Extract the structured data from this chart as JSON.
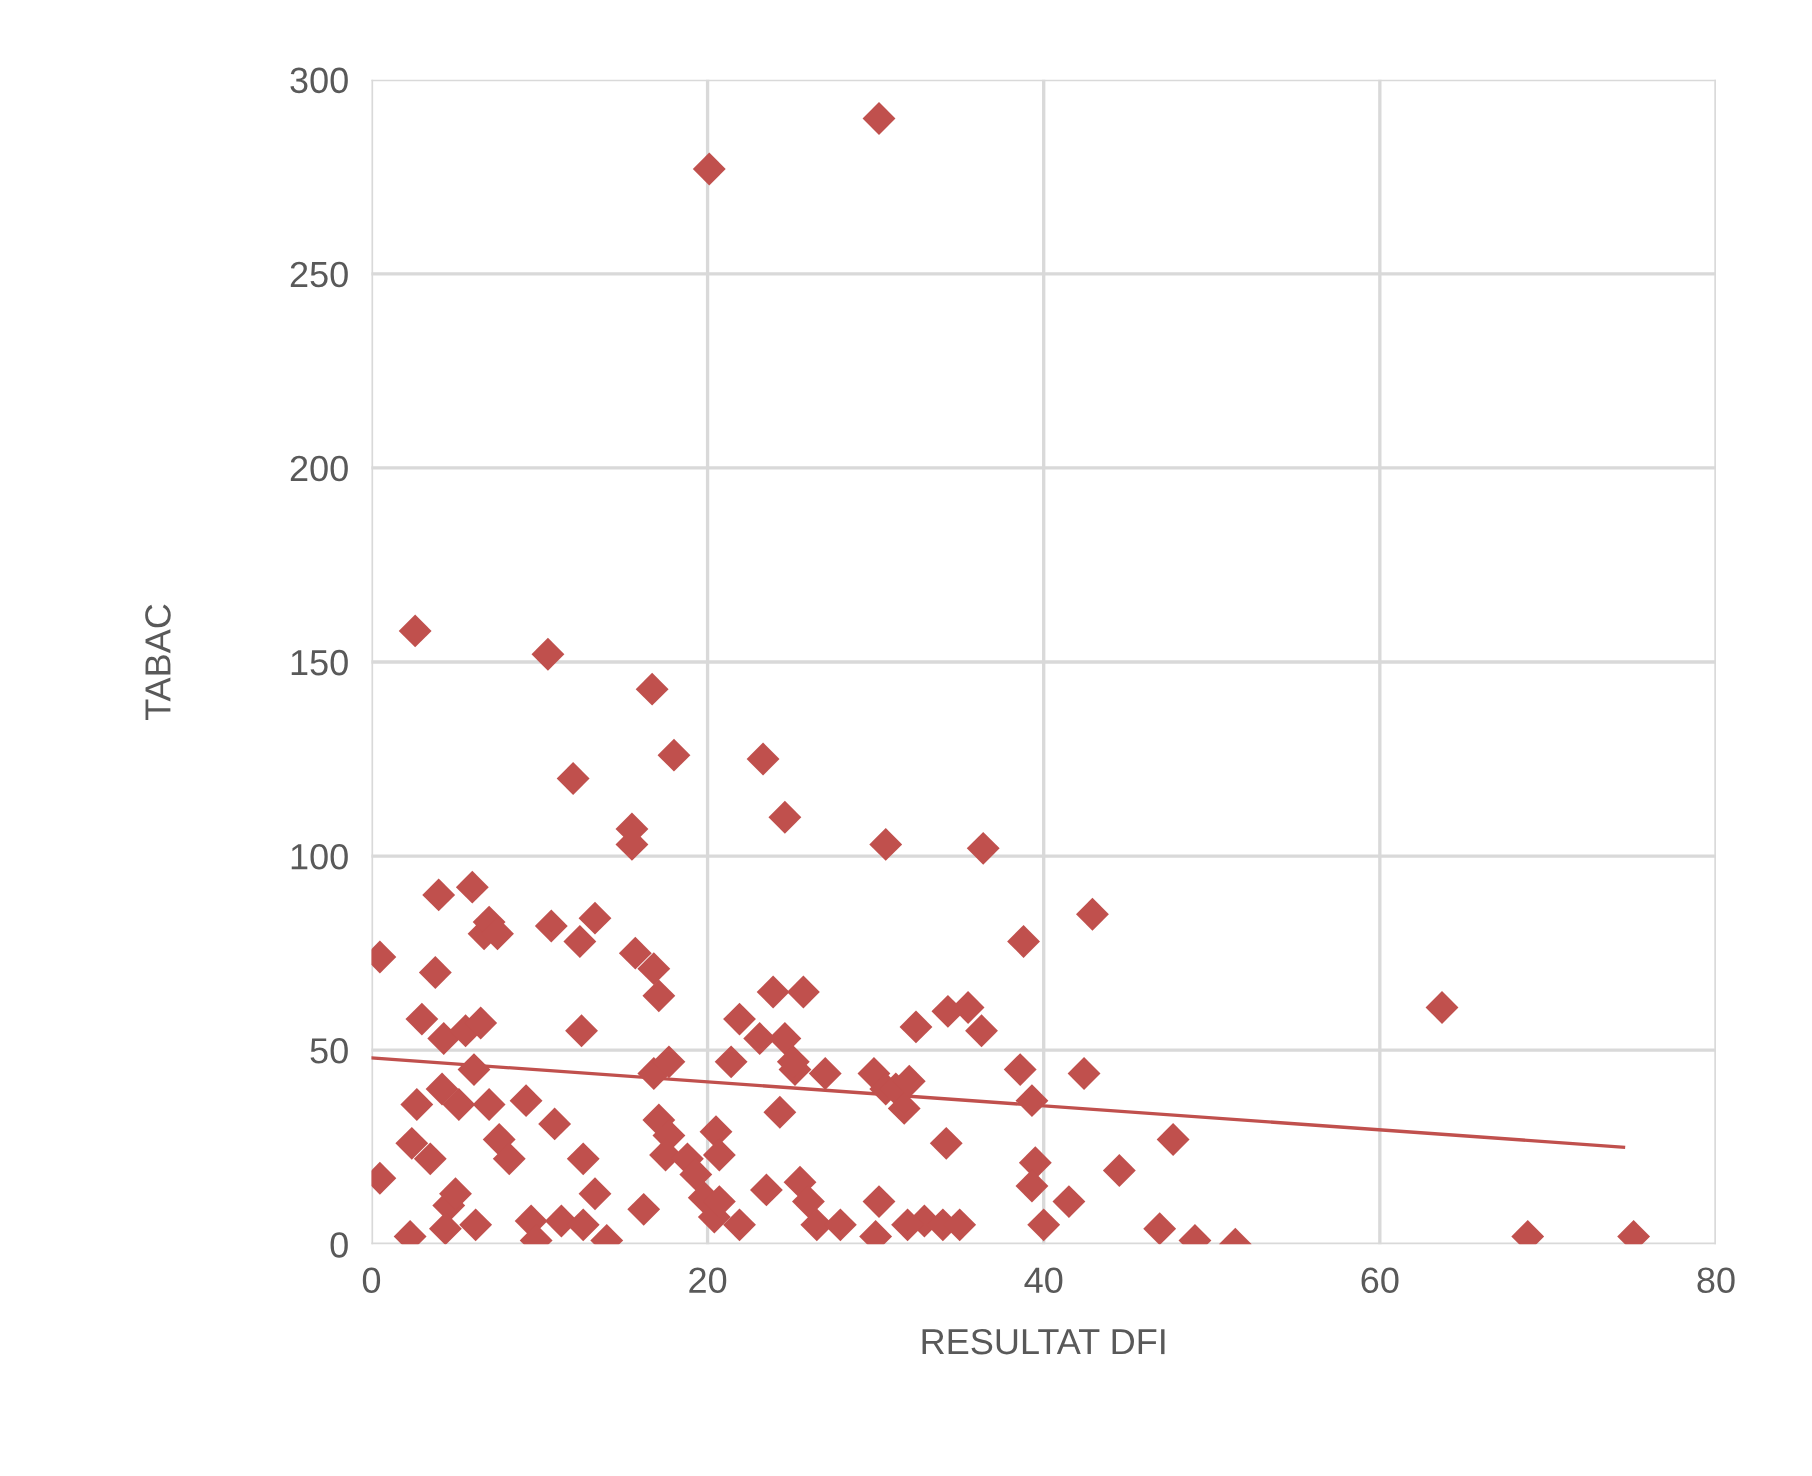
{
  "chart_data": {
    "type": "scatter",
    "xlabel": "RESULTAT DFI",
    "ylabel": "TABAC",
    "xlim": [
      0,
      80
    ],
    "xticks": [
      0,
      20,
      40,
      60,
      80
    ],
    "ylim": [
      0,
      300
    ],
    "yticks": [
      0,
      50,
      100,
      150,
      200,
      250,
      300
    ],
    "grid": true,
    "series": [
      {
        "marker": "diamond",
        "color": "#c0504d",
        "x": [
          0.5,
          0.5,
          2.6,
          2.3,
          2.4,
          2.7,
          3,
          3.8,
          4,
          4.3,
          3.5,
          4.2,
          4.6,
          4.4,
          5,
          5.2,
          6,
          5.6,
          6.1,
          6.5,
          6.7,
          7,
          7.5,
          7,
          6.2,
          7.6,
          8.2,
          9.2,
          9.5,
          9.8,
          10.5,
          10.7,
          10.9,
          11.3,
          12,
          12.4,
          12.5,
          12.6,
          13.3,
          13.3,
          14,
          12.6,
          15.5,
          15.5,
          15.7,
          16.2,
          16.7,
          16.8,
          17.1,
          16.8,
          17.7,
          17.1,
          17.7,
          17.5,
          18,
          18.8,
          19.3,
          19.8,
          20.1,
          20.4,
          20.5,
          20.7,
          20.7,
          21.4,
          21.9,
          21.9,
          23.3,
          23.1,
          23.9,
          23.5,
          24.3,
          24.6,
          24.6,
          25.2,
          25.7,
          25.1,
          25.5,
          26,
          26.5,
          27,
          27.9,
          30.2,
          30.6,
          29.9,
          30.6,
          30.2,
          30,
          31.2,
          31.7,
          32,
          32.4,
          32.9,
          31.9,
          34.2,
          34.3,
          34,
          35,
          35.5,
          36.3,
          36.4,
          38.8,
          38.6,
          39.3,
          39.5,
          39.3,
          40,
          41.5,
          42.4,
          42.9,
          44.5,
          47.7,
          46.9,
          49,
          51.4,
          63.7,
          68.8,
          75.1
        ],
        "values": [
          17,
          74,
          158,
          2,
          26,
          36,
          58,
          70,
          90,
          53,
          22,
          40,
          10,
          4,
          13,
          36,
          92,
          55,
          45,
          57,
          80,
          83,
          80,
          36,
          5,
          27,
          22,
          37,
          6,
          1,
          152,
          82,
          31,
          6,
          120,
          78,
          55,
          22,
          84,
          13,
          1,
          5,
          107,
          103,
          75,
          9,
          143,
          71,
          64,
          44,
          47,
          32,
          28,
          23,
          126,
          22,
          18,
          12,
          277,
          7,
          29,
          23,
          11,
          47,
          58,
          5,
          125,
          53,
          65,
          14,
          34,
          110,
          53,
          45,
          65,
          47,
          16,
          11,
          5,
          44,
          5,
          290,
          103,
          44,
          40,
          11,
          2,
          40,
          35,
          42,
          56,
          6,
          5,
          26,
          60,
          5,
          5,
          61,
          55,
          102,
          78,
          45,
          37,
          21,
          15,
          5,
          11,
          44,
          85,
          19,
          27,
          4,
          1,
          0,
          61,
          2,
          2
        ]
      },
      {
        "type": "line",
        "marker": "none",
        "color": "#c0504d",
        "x": [
          0,
          74.5
        ],
        "values": [
          48,
          25
        ]
      }
    ]
  }
}
